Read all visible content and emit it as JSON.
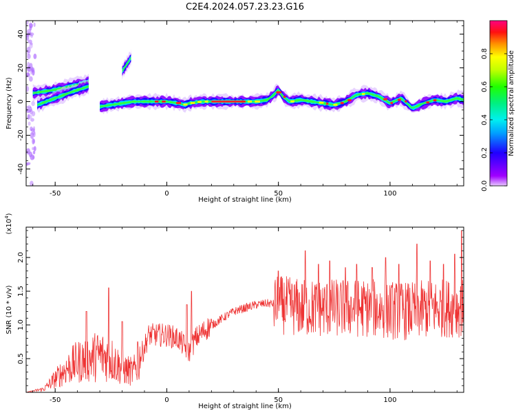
{
  "title": "C2E4.2024.057.23.23.G16",
  "chart_data": [
    {
      "type": "heatmap",
      "xlabel": "Height of straight line (km)",
      "ylabel": "Frequency (Hz)",
      "xlim": [
        -63,
        133
      ],
      "ylim": [
        -50,
        48
      ],
      "xticks": [
        -50,
        0,
        50,
        100
      ],
      "yticks": [
        -40,
        -20,
        0,
        20,
        40
      ],
      "colorbar": {
        "label": "Normalized spectral amplitude",
        "range": [
          0,
          1
        ],
        "ticks": [
          0.0,
          0.2,
          0.4,
          0.6,
          0.8
        ],
        "tick_labels": [
          "0.0",
          "0.2",
          "0.4",
          "0.6",
          "0.8"
        ],
        "colormap": "rainbow (purple-blue-cyan-green-yellow-orange-red-magenta)"
      },
      "main_trace": [
        [
          -30,
          -3
        ],
        [
          -25,
          -2
        ],
        [
          -20,
          -1
        ],
        [
          -15,
          0
        ],
        [
          -10,
          0
        ],
        [
          -5,
          0
        ],
        [
          0,
          0
        ],
        [
          5,
          -1
        ],
        [
          8,
          -2
        ],
        [
          10,
          -1
        ],
        [
          15,
          0
        ],
        [
          20,
          0
        ],
        [
          25,
          0
        ],
        [
          30,
          0
        ],
        [
          35,
          0
        ],
        [
          40,
          0
        ],
        [
          45,
          1
        ],
        [
          48,
          4
        ],
        [
          50,
          7
        ],
        [
          52,
          3
        ],
        [
          55,
          0
        ],
        [
          60,
          1
        ],
        [
          65,
          0
        ],
        [
          70,
          -1
        ],
        [
          75,
          -2
        ],
        [
          80,
          0
        ],
        [
          85,
          4
        ],
        [
          90,
          5
        ],
        [
          95,
          3
        ],
        [
          100,
          -1
        ],
        [
          105,
          2
        ],
        [
          110,
          -4
        ],
        [
          115,
          -1
        ],
        [
          120,
          1
        ],
        [
          125,
          0
        ],
        [
          130,
          2
        ],
        [
          133,
          1
        ]
      ],
      "secondary_traces": [
        {
          "points": [
            [
              -60,
              5
            ],
            [
              -50,
              7
            ],
            [
              -40,
              10
            ],
            [
              -35,
              12
            ]
          ]
        },
        {
          "points": [
            [
              -58,
              -2
            ],
            [
              -50,
              2
            ],
            [
              -42,
              6
            ],
            [
              -35,
              9
            ]
          ]
        },
        {
          "points": [
            [
              -20,
              18
            ],
            [
              -18,
              22
            ],
            [
              -16,
              26
            ]
          ]
        }
      ]
    },
    {
      "type": "line",
      "xlabel": "Height of straight line (km)",
      "ylabel": "SNR (10 * v/v)",
      "multiplier": "(x10",
      "multiplier_exp": "4",
      "multiplier_close": ")",
      "xlim": [
        -63,
        133
      ],
      "ylim": [
        0,
        2.45
      ],
      "xticks": [
        -50,
        0,
        50,
        100
      ],
      "yticks": [
        0.5,
        1.0,
        1.5,
        2.0
      ],
      "ytick_labels": [
        "0.5",
        "1.0",
        "1.5",
        "2.0"
      ],
      "series": [
        {
          "color": "#ee3333",
          "envelope": [
            [
              -63,
              0
            ],
            [
              -55,
              0.05
            ],
            [
              -50,
              0.2
            ],
            [
              -45,
              0.35
            ],
            [
              -40,
              0.45
            ],
            [
              -35,
              0.5
            ],
            [
              -30,
              0.55
            ],
            [
              -25,
              0.5
            ],
            [
              -20,
              0.35
            ],
            [
              -15,
              0.3
            ],
            [
              -12,
              0.5
            ],
            [
              -8,
              0.85
            ],
            [
              -4,
              0.85
            ],
            [
              0,
              0.85
            ],
            [
              5,
              0.8
            ],
            [
              10,
              0.6
            ],
            [
              13,
              0.8
            ],
            [
              18,
              0.95
            ],
            [
              25,
              1.1
            ],
            [
              30,
              1.2
            ],
            [
              35,
              1.25
            ],
            [
              40,
              1.3
            ],
            [
              45,
              1.32
            ],
            [
              50,
              1.3
            ],
            [
              55,
              1.28
            ],
            [
              60,
              1.25
            ],
            [
              70,
              1.25
            ],
            [
              80,
              1.25
            ],
            [
              90,
              1.25
            ],
            [
              100,
              1.22
            ],
            [
              110,
              1.2
            ],
            [
              120,
              1.25
            ],
            [
              130,
              1.25
            ],
            [
              133,
              1.25
            ]
          ],
          "spikes": [
            [
              -36,
              1.2
            ],
            [
              -26,
              1.55
            ],
            [
              -20,
              1.05
            ],
            [
              -13,
              0.75
            ],
            [
              9,
              1.3
            ],
            [
              11,
              1.5
            ],
            [
              50,
              1.8
            ],
            [
              62,
              2.1
            ],
            [
              68,
              1.9
            ],
            [
              73,
              1.95
            ],
            [
              80,
              1.85
            ],
            [
              85,
              1.9
            ],
            [
              92,
              1.85
            ],
            [
              98,
              2.0
            ],
            [
              104,
              1.9
            ],
            [
              112,
              2.2
            ],
            [
              118,
              1.95
            ],
            [
              124,
              1.9
            ],
            [
              129,
              2.05
            ],
            [
              132,
              2.4
            ]
          ]
        }
      ]
    }
  ]
}
